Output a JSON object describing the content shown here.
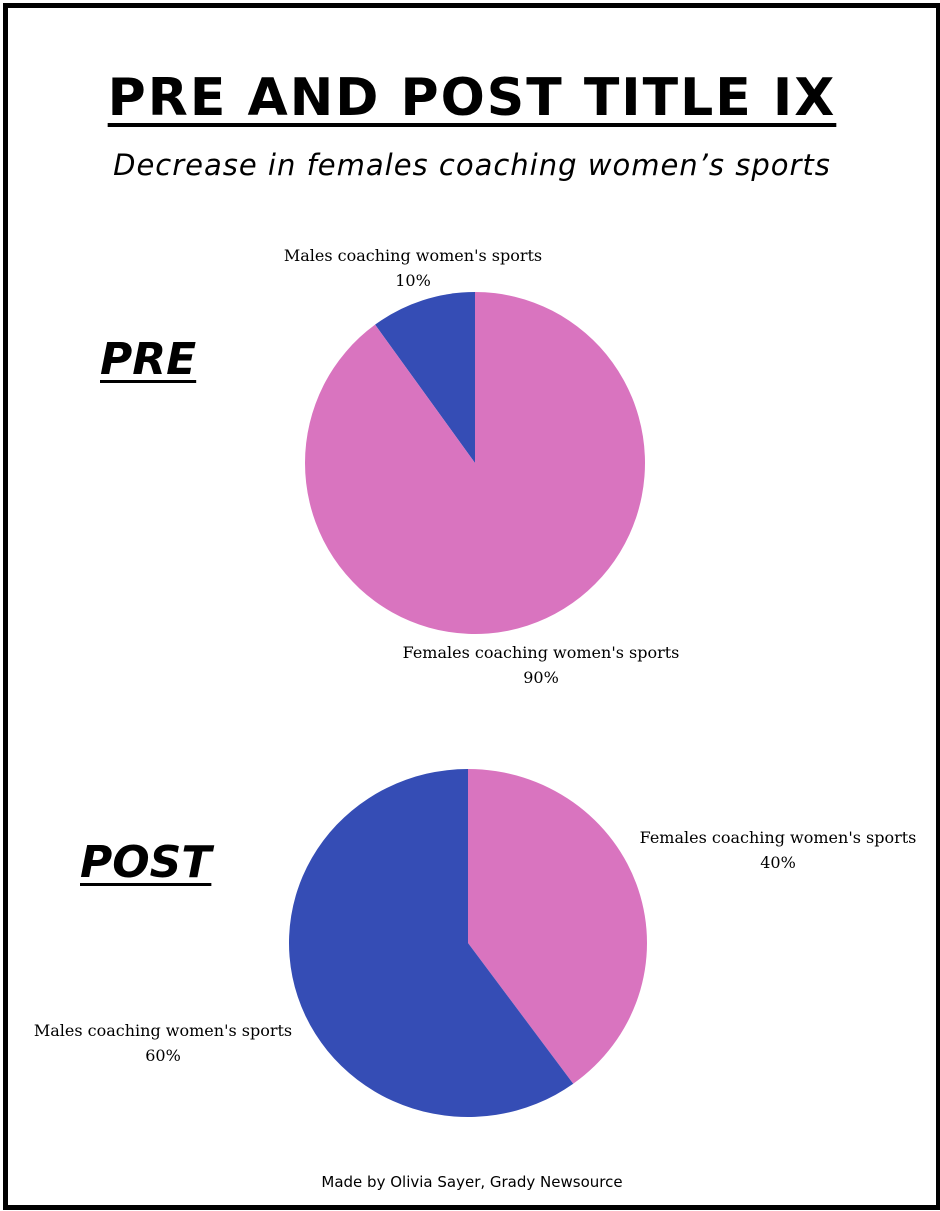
{
  "title": "PRE AND POST TITLE IX",
  "subtitle": "Decrease in females coaching women’s sports",
  "footer": "Made by Olivia Sayer, Grady Newsource",
  "colors": {
    "female": "#d974bf",
    "male": "#354db5"
  },
  "chart_data": [
    {
      "type": "pie",
      "label": "PRE",
      "slices": [
        {
          "name": "Males coaching women's sports",
          "value": 10,
          "value_label": "10%",
          "color": "#354db5"
        },
        {
          "name": "Females coaching women's sports",
          "value": 90,
          "value_label": "90%",
          "color": "#d974bf"
        }
      ]
    },
    {
      "type": "pie",
      "label": "POST",
      "slices": [
        {
          "name": "Females coaching women's sports",
          "value": 40,
          "value_label": "40%",
          "color": "#d974bf"
        },
        {
          "name": "Males coaching women's sports",
          "value": 60,
          "value_label": "60%",
          "color": "#354db5"
        }
      ]
    }
  ]
}
